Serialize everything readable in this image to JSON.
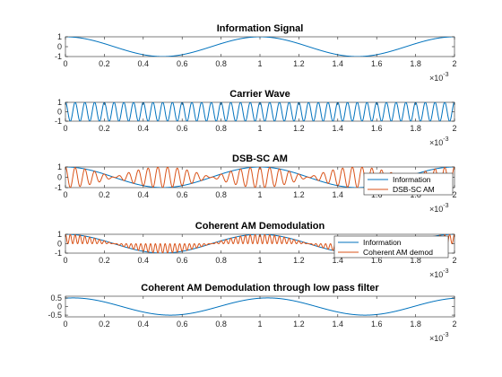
{
  "chart_data": [
    {
      "type": "line",
      "title": "Information Signal",
      "x_ticks": [
        "0",
        "0.2",
        "0.4",
        "0.6",
        "0.8",
        "1",
        "1.2",
        "1.4",
        "1.6",
        "1.8",
        "2"
      ],
      "y_ticks": [
        "1",
        "0",
        "-1"
      ],
      "x_exponent": "×10",
      "x_exponent_power": "-3",
      "xlim": [
        0,
        0.002
      ],
      "ylim": [
        -1,
        1
      ],
      "series": [
        {
          "formula": "cos(2*pi*1000*t)",
          "amplitude": 1,
          "frequency_hz": 1000,
          "color": "#0072BD"
        }
      ]
    },
    {
      "type": "line",
      "title": "Carrier Wave",
      "x_ticks": [
        "0",
        "0.2",
        "0.4",
        "0.6",
        "0.8",
        "1",
        "1.2",
        "1.4",
        "1.6",
        "1.8",
        "2"
      ],
      "y_ticks": [
        "1",
        "0",
        "-1"
      ],
      "x_exponent": "×10",
      "x_exponent_power": "-3",
      "xlim": [
        0,
        0.002
      ],
      "ylim": [
        -1,
        1
      ],
      "series": [
        {
          "formula": "cos(2*pi*20000*t)",
          "amplitude": 1,
          "frequency_hz": 20000,
          "color": "#0072BD"
        }
      ]
    },
    {
      "type": "line",
      "title": "DSB-SC AM",
      "x_ticks": [
        "0",
        "0.2",
        "0.4",
        "0.6",
        "0.8",
        "1",
        "1.2",
        "1.4",
        "1.6",
        "1.8",
        "2"
      ],
      "y_ticks": [
        "1",
        "0",
        "-1"
      ],
      "x_exponent": "×10",
      "x_exponent_power": "-3",
      "xlim": [
        0,
        0.002
      ],
      "ylim": [
        -1,
        1
      ],
      "legend": {
        "position": "bottom-right",
        "entries": [
          "Information",
          "DSB-SC AM"
        ]
      },
      "series": [
        {
          "name": "Information",
          "formula": "cos(2*pi*1000*t)",
          "color": "#0072BD"
        },
        {
          "name": "DSB-SC AM",
          "formula": "cos(2*pi*1000*t)*cos(2*pi*20000*t)",
          "color": "#D95319"
        }
      ]
    },
    {
      "type": "line",
      "title": "Coherent AM Demodulation",
      "x_ticks": [
        "0",
        "0.2",
        "0.4",
        "0.6",
        "0.8",
        "1",
        "1.2",
        "1.4",
        "1.6",
        "1.8",
        "2"
      ],
      "y_ticks": [
        "1",
        "0",
        "-1"
      ],
      "x_exponent": "×10",
      "x_exponent_power": "-3",
      "xlim": [
        0,
        0.002
      ],
      "ylim": [
        -1,
        1
      ],
      "legend": {
        "position": "bottom-right",
        "entries": [
          "Information",
          "Coherent AM demod"
        ]
      },
      "series": [
        {
          "name": "Information",
          "formula": "cos(2*pi*1000*t)",
          "color": "#0072BD"
        },
        {
          "name": "Coherent AM demod",
          "formula": "cos(2*pi*1000*t)*cos(2*pi*20000*t)^2",
          "color": "#D95319"
        }
      ]
    },
    {
      "type": "line",
      "title": "Coherent AM Demodulation through low pass filter",
      "x_ticks": [
        "0",
        "0.2",
        "0.4",
        "0.6",
        "0.8",
        "1",
        "1.2",
        "1.4",
        "1.6",
        "1.8",
        "2"
      ],
      "y_ticks": [
        "0.5",
        "0",
        "-0.5"
      ],
      "x_exponent": "×10",
      "x_exponent_power": "-3",
      "xlim": [
        0,
        0.002
      ],
      "ylim": [
        -0.6,
        0.6
      ],
      "series": [
        {
          "formula": "0.5*cos(2*pi*1000*(t-0.00004))",
          "amplitude": 0.5,
          "frequency_hz": 1000,
          "color": "#0072BD"
        }
      ]
    }
  ]
}
